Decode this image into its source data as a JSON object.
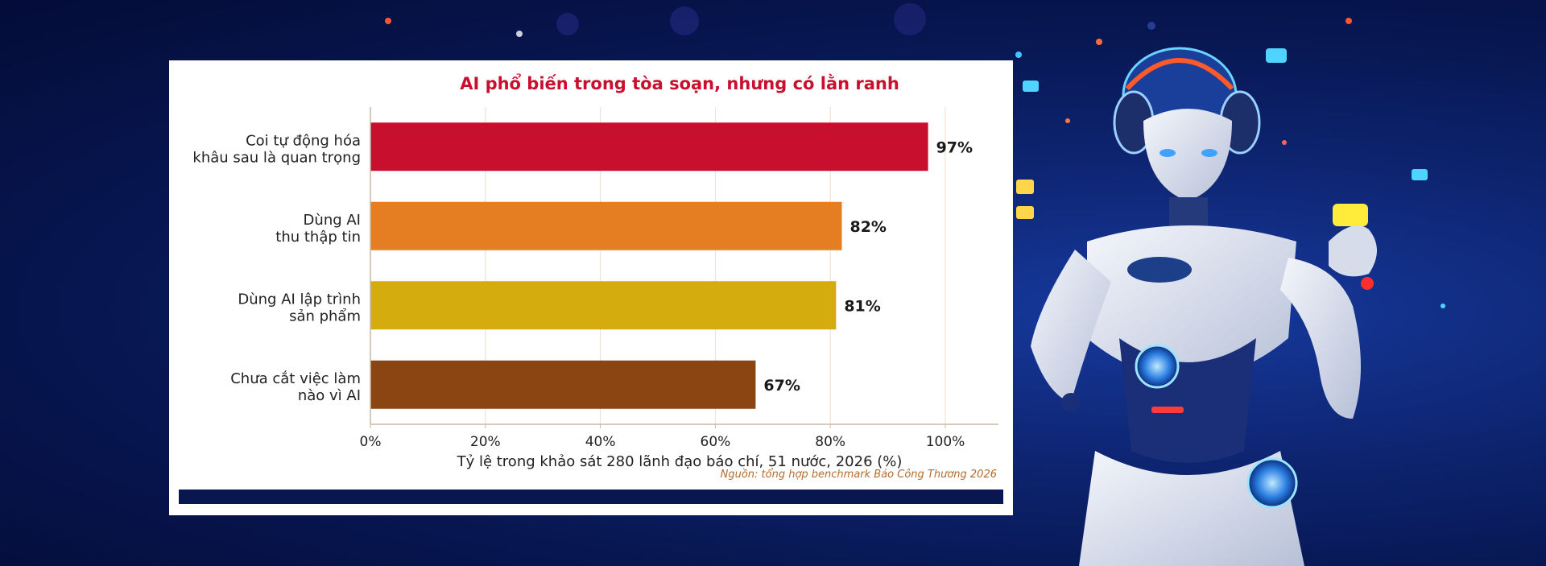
{
  "colors": {
    "title": "#c8102e",
    "bottom_bar": "#0a1650",
    "source": "#b86a2a"
  },
  "background_image": "robot-illustration",
  "chart_data": {
    "type": "bar",
    "orientation": "horizontal",
    "title": "AI phổ biến trong tòa soạn, nhưng có lằn ranh",
    "categories": [
      [
        "Coi tự động hóa",
        "khâu sau là quan trọng"
      ],
      [
        "Dùng AI",
        "thu thập tin"
      ],
      [
        "Dùng AI lập trình",
        "sản phẩm"
      ],
      [
        "Chưa cắt việc làm",
        "nào vì AI"
      ]
    ],
    "values": [
      97,
      82,
      81,
      67
    ],
    "value_labels": [
      "97%",
      "82%",
      "81%",
      "67%"
    ],
    "bar_colors": [
      "#c8102e",
      "#e57e22",
      "#d4ac0d",
      "#8b4513"
    ],
    "xlabel": "Tỷ lệ trong khảo sát 280 lãnh đạo báo chí, 51 nước, 2026 (%)",
    "xlim": [
      0,
      100
    ],
    "xticks": [
      0,
      20,
      40,
      60,
      80,
      100
    ],
    "xtick_labels": [
      "0%",
      "20%",
      "40%",
      "60%",
      "80%",
      "100%"
    ],
    "grid": "vertical",
    "source": "Nguồn: tổng hợp benchmark Báo Công Thương 2026"
  }
}
